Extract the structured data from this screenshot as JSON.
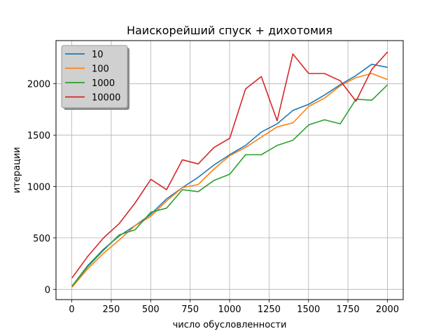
{
  "chart_data": {
    "type": "line",
    "title": "Наискорейший спуск + дихотомия",
    "xlabel": "число обусловленности",
    "ylabel": "итерации",
    "xlim": [
      -100,
      2100
    ],
    "ylim": [
      -100,
      2420
    ],
    "xticks": [
      0,
      250,
      500,
      750,
      1000,
      1250,
      1500,
      1750,
      2000
    ],
    "yticks": [
      0,
      500,
      1000,
      1500,
      2000
    ],
    "grid": true,
    "legend_position": "upper-left",
    "x": [
      1,
      101,
      201,
      301,
      401,
      501,
      601,
      701,
      801,
      901,
      1001,
      1101,
      1201,
      1301,
      1401,
      1501,
      1601,
      1701,
      1801,
      1901,
      2001
    ],
    "series": [
      {
        "name": "10",
        "color": "#1f77b4",
        "values": [
          30,
          230,
          390,
          520,
          620,
          730,
          880,
          990,
          1090,
          1210,
          1310,
          1400,
          1530,
          1610,
          1740,
          1800,
          1890,
          1990,
          2080,
          2190,
          2160
        ]
      },
      {
        "name": "100",
        "color": "#ff7f0e",
        "values": [
          20,
          200,
          350,
          480,
          620,
          710,
          860,
          990,
          1020,
          1170,
          1300,
          1380,
          1480,
          1580,
          1620,
          1780,
          1860,
          1980,
          2060,
          2100,
          2040
        ]
      },
      {
        "name": "1000",
        "color": "#2ca02c",
        "values": [
          30,
          220,
          380,
          530,
          580,
          750,
          790,
          970,
          950,
          1060,
          1120,
          1310,
          1310,
          1400,
          1450,
          1600,
          1650,
          1610,
          1850,
          1840,
          1990
        ]
      },
      {
        "name": "10000",
        "color": "#d62728",
        "values": [
          110,
          320,
          500,
          640,
          840,
          1070,
          970,
          1260,
          1220,
          1380,
          1470,
          1950,
          2070,
          1640,
          2290,
          2100,
          2100,
          2030,
          1830,
          2140,
          2310
        ]
      }
    ]
  }
}
